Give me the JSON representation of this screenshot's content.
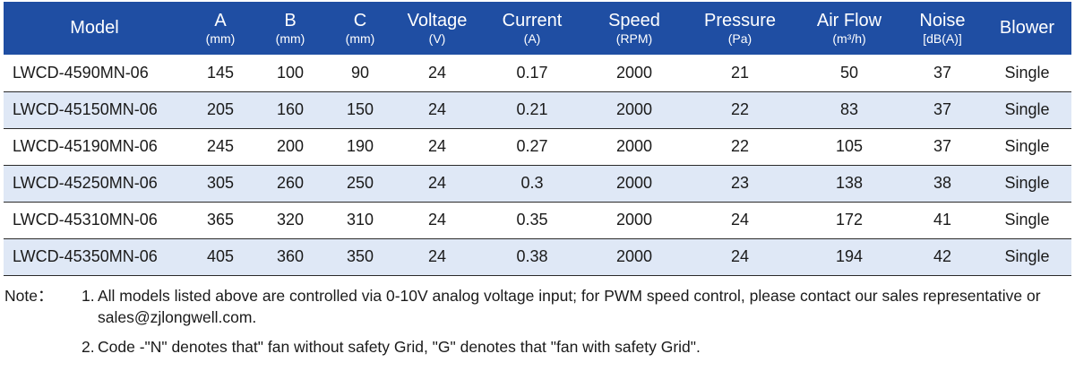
{
  "table": {
    "columns": [
      {
        "title": "Model",
        "unit": ""
      },
      {
        "title": "A",
        "unit": "(mm)"
      },
      {
        "title": "B",
        "unit": "(mm)"
      },
      {
        "title": "C",
        "unit": "(mm)"
      },
      {
        "title": "Voltage",
        "unit": "(V)"
      },
      {
        "title": "Current",
        "unit": "(A)"
      },
      {
        "title": "Speed",
        "unit": "(RPM)"
      },
      {
        "title": "Pressure",
        "unit": "(Pa)"
      },
      {
        "title": "Air Flow",
        "unit": "(m³/h)"
      },
      {
        "title": "Noise",
        "unit": "[dB(A)]"
      },
      {
        "title": "Blower",
        "unit": ""
      }
    ],
    "rows": [
      [
        "LWCD-4590MN-06",
        "145",
        "100",
        "90",
        "24",
        "0.17",
        "2000",
        "21",
        "50",
        "37",
        "Single"
      ],
      [
        "LWCD-45150MN-06",
        "205",
        "160",
        "150",
        "24",
        "0.21",
        "2000",
        "22",
        "83",
        "37",
        "Single"
      ],
      [
        "LWCD-45190MN-06",
        "245",
        "200",
        "190",
        "24",
        "0.27",
        "2000",
        "22",
        "105",
        "37",
        "Single"
      ],
      [
        "LWCD-45250MN-06",
        "305",
        "260",
        "250",
        "24",
        "0.3",
        "2000",
        "23",
        "138",
        "38",
        "Single"
      ],
      [
        "LWCD-45310MN-06",
        "365",
        "320",
        "310",
        "24",
        "0.35",
        "2000",
        "24",
        "172",
        "41",
        "Single"
      ],
      [
        "LWCD-45350MN-06",
        "405",
        "360",
        "350",
        "24",
        "0.38",
        "2000",
        "24",
        "194",
        "42",
        "Single"
      ]
    ]
  },
  "notes": {
    "label": "Note：",
    "items": [
      {
        "num": "1.",
        "text": "All models listed above are controlled via 0-10V analog voltage input; for PWM speed control, please contact our sales representative or sales@zjlongwell.com."
      },
      {
        "num": "2.",
        "text": "Code -\"N\" denotes that\" fan without safety Grid, \"G\" denotes that \"fan with safety Grid\"."
      }
    ]
  },
  "colors": {
    "header_bg": "#1f4ea3",
    "alt_row_bg": "#dfe8f6",
    "header_text": "#ffffff"
  }
}
